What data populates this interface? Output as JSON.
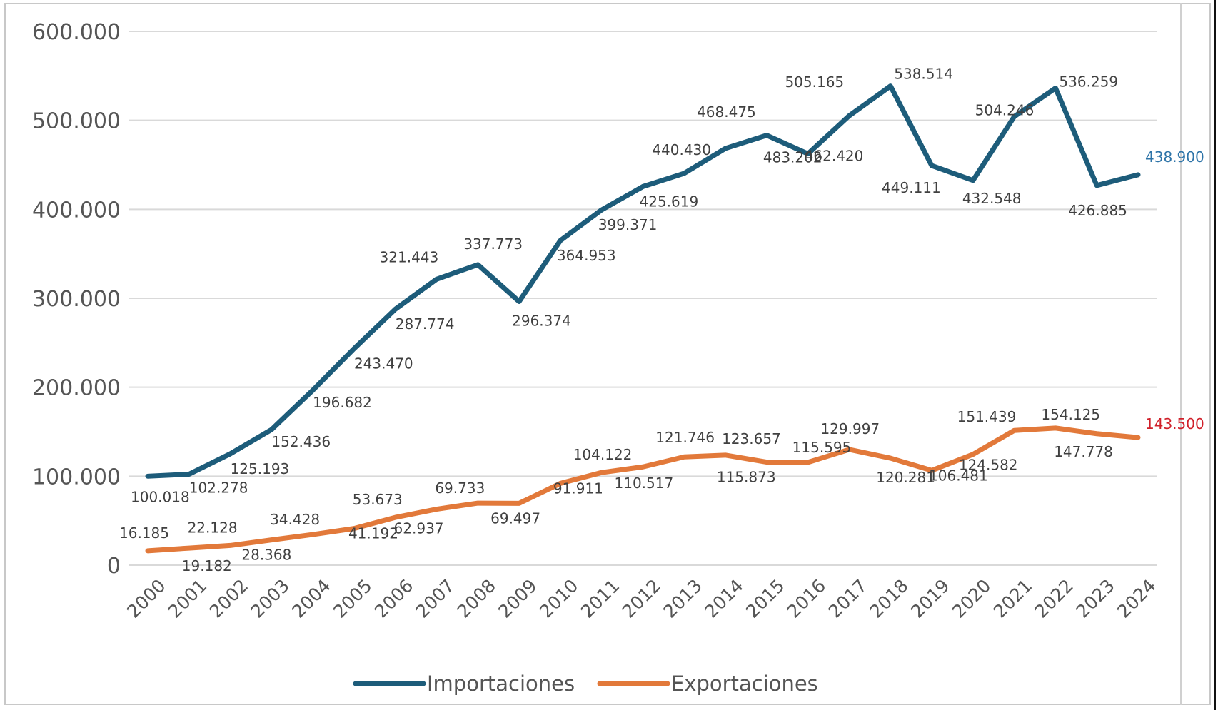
{
  "chart_data": {
    "type": "line",
    "title": "",
    "xlabel": "",
    "ylabel": "",
    "ylim": [
      0,
      600000
    ],
    "yticks": [
      0,
      100000,
      200000,
      300000,
      400000,
      500000,
      600000
    ],
    "ytick_labels": [
      "0",
      "100.000",
      "200.000",
      "300.000",
      "400.000",
      "500.000",
      "600.000"
    ],
    "grid": true,
    "legend_position": "bottom",
    "categories": [
      "2000",
      "2001",
      "2002",
      "2003",
      "2004",
      "2005",
      "2006",
      "2007",
      "2008",
      "2009",
      "2010",
      "2011",
      "2012",
      "2013",
      "2014",
      "2015",
      "2016",
      "2017",
      "2018",
      "2019",
      "2020",
      "2021",
      "2022",
      "2023",
      "2024"
    ],
    "series": [
      {
        "name": "Importaciones",
        "color": "#1d5c7a",
        "last_label_color": "#2e74a8",
        "values": [
          100018,
          102278,
          125193,
          152436,
          196682,
          243470,
          287774,
          321443,
          337773,
          296374,
          364953,
          399371,
          425619,
          440430,
          468475,
          483202,
          462420,
          505165,
          538514,
          449111,
          432548,
          504246,
          536259,
          426885,
          438900
        ],
        "labels": [
          "100.018",
          "102.278",
          "125.193",
          "152.436",
          "196.682",
          "243.470",
          "287.774",
          "321.443",
          "337.773",
          "296.374",
          "364.953",
          "399.371",
          "425.619",
          "440.430",
          "468.475",
          "483.202",
          "462.420",
          "505.165",
          "538.514",
          "449.111",
          "432.548",
          "504.246",
          "536.259",
          "426.885",
          "438.900"
        ]
      },
      {
        "name": "Exportaciones",
        "color": "#e2793a",
        "last_label_color": "#d0202a",
        "values": [
          16185,
          19182,
          22128,
          28368,
          34428,
          41192,
          53673,
          62937,
          69733,
          69497,
          91911,
          104122,
          110517,
          121746,
          123657,
          115873,
          115595,
          129997,
          120281,
          106481,
          124582,
          151439,
          154125,
          147778,
          143500
        ],
        "labels": [
          "16.185",
          "19.182",
          "22.128",
          "28.368",
          "34.428",
          "41.192",
          "53.673",
          "62.937",
          "69.733",
          "69.497",
          "91.911",
          "104.122",
          "110.517",
          "121.746",
          "123.657",
          "115.873",
          "115.595",
          "129.997",
          "120.281",
          "106.481",
          "124.582",
          "151.439",
          "154.125",
          "147.778",
          "143.500"
        ]
      }
    ]
  }
}
